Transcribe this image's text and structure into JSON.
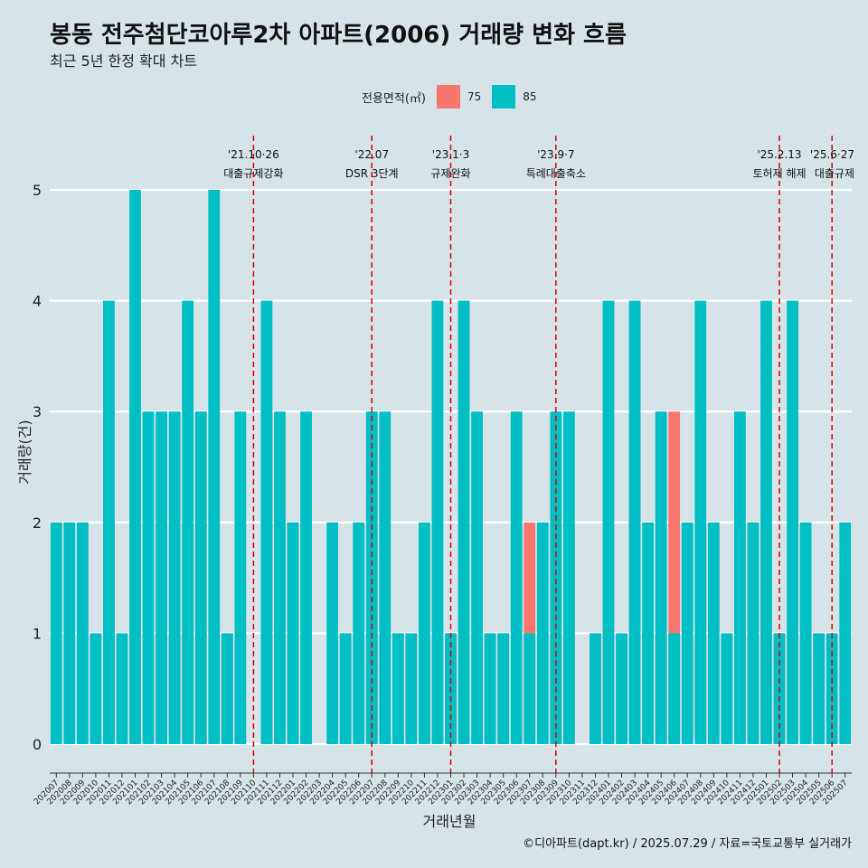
{
  "header": {
    "title": "봉동 전주첨단코아루2차 아파트(2006) 거래량 변화 흐름",
    "subtitle": "최근 5년 한정 확대 차트"
  },
  "legend": {
    "title": "전용면적(㎡)",
    "items": [
      {
        "label": "75",
        "color": "#f8766d"
      },
      {
        "label": "85",
        "color": "#00bfc4"
      }
    ]
  },
  "source": "©디아파트(dapt.kr) / 2025.07.29 / 자료=국토교통부 실거래가",
  "chart_data": {
    "type": "bar",
    "title": "봉동 전주첨단코아루2차 아파트(2006) 거래량 변화 흐름",
    "subtitle": "최근 5년 한정 확대 차트",
    "xlabel": "거래년월",
    "ylabel": "거래량(건)",
    "ylim": [
      0,
      5
    ],
    "yticks": [
      0,
      1,
      2,
      3,
      4,
      5
    ],
    "grid": true,
    "legend_position": "top",
    "categories": [
      "202007",
      "202008",
      "202009",
      "202010",
      "202011",
      "202012",
      "202101",
      "202102",
      "202103",
      "202104",
      "202105",
      "202106",
      "202107",
      "202108",
      "202109",
      "202110",
      "202111",
      "202112",
      "202201",
      "202202",
      "202203",
      "202204",
      "202205",
      "202206",
      "202207",
      "202208",
      "202209",
      "202210",
      "202211",
      "202212",
      "202301",
      "202302",
      "202303",
      "202304",
      "202305",
      "202306",
      "202307",
      "202308",
      "202309",
      "202310",
      "202311",
      "202312",
      "202401",
      "202402",
      "202403",
      "202404",
      "202405",
      "202406",
      "202407",
      "202408",
      "202409",
      "202410",
      "202411",
      "202412",
      "202501",
      "202502",
      "202503",
      "202504",
      "202505",
      "202506",
      "202507"
    ],
    "series": [
      {
        "name": "75",
        "color": "#f8766d",
        "values": [
          0,
          0,
          0,
          0,
          2,
          0,
          0,
          0,
          1,
          1,
          2,
          3,
          0,
          1,
          0,
          0,
          3,
          0,
          2,
          0,
          0,
          0,
          1,
          0,
          1,
          0,
          1,
          0,
          0,
          0,
          1,
          0,
          0,
          1,
          1,
          0,
          2,
          0,
          1,
          2,
          0,
          1,
          1,
          0,
          3,
          1,
          1,
          3,
          0,
          1,
          0,
          0,
          2,
          2,
          0,
          1,
          0,
          0,
          1,
          0,
          0
        ]
      },
      {
        "name": "85",
        "color": "#00bfc4",
        "values": [
          2,
          2,
          2,
          1,
          4,
          1,
          5,
          3,
          3,
          3,
          4,
          3,
          5,
          1,
          3,
          0,
          4,
          3,
          2,
          3,
          0,
          2,
          1,
          2,
          3,
          3,
          1,
          1,
          2,
          4,
          1,
          4,
          3,
          1,
          1,
          3,
          1,
          2,
          3,
          3,
          0,
          1,
          4,
          1,
          4,
          2,
          3,
          1,
          2,
          4,
          2,
          1,
          3,
          2,
          4,
          1,
          4,
          2,
          1,
          1,
          2
        ]
      }
    ],
    "events": [
      {
        "date": "'21.10·26",
        "label": "대출규제강화",
        "category": "202110"
      },
      {
        "date": "'22.07",
        "label": "DSR 3단계",
        "category": "202207"
      },
      {
        "date": "'23.1·3",
        "label": "규제완화",
        "category": "202301"
      },
      {
        "date": "'23.9·7",
        "label": "특례대출축소",
        "category": "202309"
      },
      {
        "date": "'25.2.13",
        "label": "토허제 해제",
        "category": "202502"
      },
      {
        "date": "'25.6·27",
        "label": "대출규제",
        "category": "202506"
      }
    ]
  }
}
